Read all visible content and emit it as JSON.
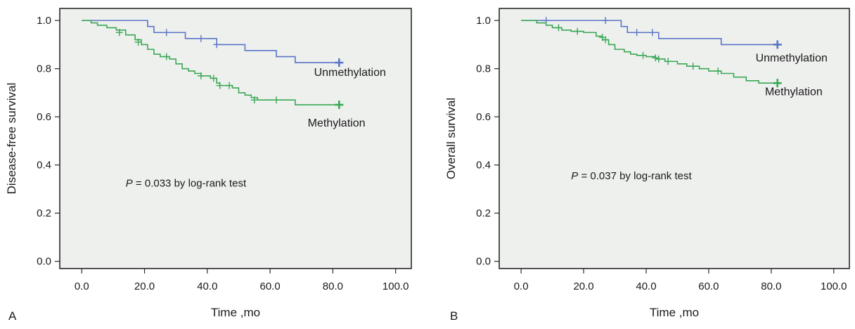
{
  "chart_data": [
    {
      "type": "line",
      "panel_label": "A",
      "xlabel": "Time ,mo",
      "ylabel": "Disease-free survival",
      "xlim": [
        -7,
        105
      ],
      "ylim": [
        -0.03,
        1.05
      ],
      "xticks": [
        "0.0",
        "20.0",
        "40.0",
        "60.0",
        "80.0",
        "100.0"
      ],
      "yticks": [
        "0.0",
        "0.2",
        "0.4",
        "0.6",
        "0.8",
        "1.0"
      ],
      "annotation": {
        "prefix": "P",
        "text": " = 0.033 by log-rank test",
        "x": 14,
        "y": 0.31
      },
      "series": [
        {
          "name": "Unmethylation",
          "color": "#5b74c8",
          "label_x": 74,
          "label_y": 0.77,
          "x": [
            0,
            21,
            23,
            28,
            33,
            43,
            52,
            62,
            68,
            82
          ],
          "y": [
            1.0,
            0.975,
            0.95,
            0.95,
            0.925,
            0.9,
            0.875,
            0.85,
            0.825,
            0.825
          ],
          "censors": [
            [
              27,
              0.95
            ],
            [
              38,
              0.925
            ],
            [
              43,
              0.9
            ],
            [
              82,
              0.825
            ]
          ]
        },
        {
          "name": "Methylation",
          "color": "#3aa856",
          "label_x": 72,
          "label_y": 0.56,
          "x": [
            0,
            3,
            5,
            8,
            11,
            14,
            17,
            19,
            21,
            23,
            25,
            28,
            30,
            32,
            34,
            36,
            38,
            41,
            43,
            44,
            48,
            50,
            52,
            54,
            56,
            68,
            82
          ],
          "y": [
            1.0,
            0.99,
            0.98,
            0.97,
            0.96,
            0.94,
            0.92,
            0.9,
            0.88,
            0.86,
            0.85,
            0.84,
            0.82,
            0.8,
            0.79,
            0.78,
            0.77,
            0.76,
            0.74,
            0.73,
            0.72,
            0.7,
            0.69,
            0.68,
            0.67,
            0.65,
            0.65
          ],
          "censors": [
            [
              12,
              0.95
            ],
            [
              18,
              0.91
            ],
            [
              27,
              0.85
            ],
            [
              38,
              0.77
            ],
            [
              42,
              0.76
            ],
            [
              44,
              0.73
            ],
            [
              47,
              0.73
            ],
            [
              55,
              0.67
            ],
            [
              62,
              0.67
            ],
            [
              82,
              0.65
            ]
          ]
        }
      ]
    },
    {
      "type": "line",
      "panel_label": "B",
      "xlabel": "Time ,mo",
      "ylabel": "Overall survival",
      "xlim": [
        -7,
        105
      ],
      "ylim": [
        -0.03,
        1.05
      ],
      "xticks": [
        "0.0",
        "20.0",
        "40.0",
        "60.0",
        "80.0",
        "100.0"
      ],
      "yticks": [
        "0.0",
        "0.2",
        "0.4",
        "0.6",
        "0.8",
        "1.0"
      ],
      "annotation": {
        "prefix": "P",
        "text": " = 0.037 by log-rank test",
        "x": 16,
        "y": 0.34
      },
      "series": [
        {
          "name": "Unmethylation",
          "color": "#5b74c8",
          "label_x": 75,
          "label_y": 0.83,
          "x": [
            0,
            32,
            34,
            43,
            44,
            64,
            82
          ],
          "y": [
            1.0,
            0.975,
            0.95,
            0.95,
            0.925,
            0.9,
            0.9
          ],
          "censors": [
            [
              8,
              1.0
            ],
            [
              27,
              1.0
            ],
            [
              37,
              0.95
            ],
            [
              42,
              0.95
            ],
            [
              82,
              0.9
            ]
          ]
        },
        {
          "name": "Methylation",
          "color": "#3aa856",
          "label_x": 78,
          "label_y": 0.69,
          "x": [
            0,
            5,
            8,
            10,
            13,
            16,
            20,
            24,
            26,
            28,
            30,
            33,
            35,
            37,
            40,
            43,
            46,
            50,
            53,
            57,
            60,
            64,
            68,
            72,
            76,
            82
          ],
          "y": [
            1.0,
            0.99,
            0.98,
            0.97,
            0.96,
            0.955,
            0.95,
            0.935,
            0.92,
            0.9,
            0.88,
            0.87,
            0.86,
            0.855,
            0.85,
            0.84,
            0.83,
            0.82,
            0.81,
            0.8,
            0.79,
            0.78,
            0.765,
            0.75,
            0.74,
            0.74
          ],
          "censors": [
            [
              12,
              0.97
            ],
            [
              18,
              0.955
            ],
            [
              26,
              0.93
            ],
            [
              27,
              0.92
            ],
            [
              39,
              0.855
            ],
            [
              43,
              0.845
            ],
            [
              44,
              0.84
            ],
            [
              47,
              0.83
            ],
            [
              55,
              0.81
            ],
            [
              63,
              0.79
            ],
            [
              82,
              0.74
            ]
          ]
        }
      ]
    }
  ]
}
